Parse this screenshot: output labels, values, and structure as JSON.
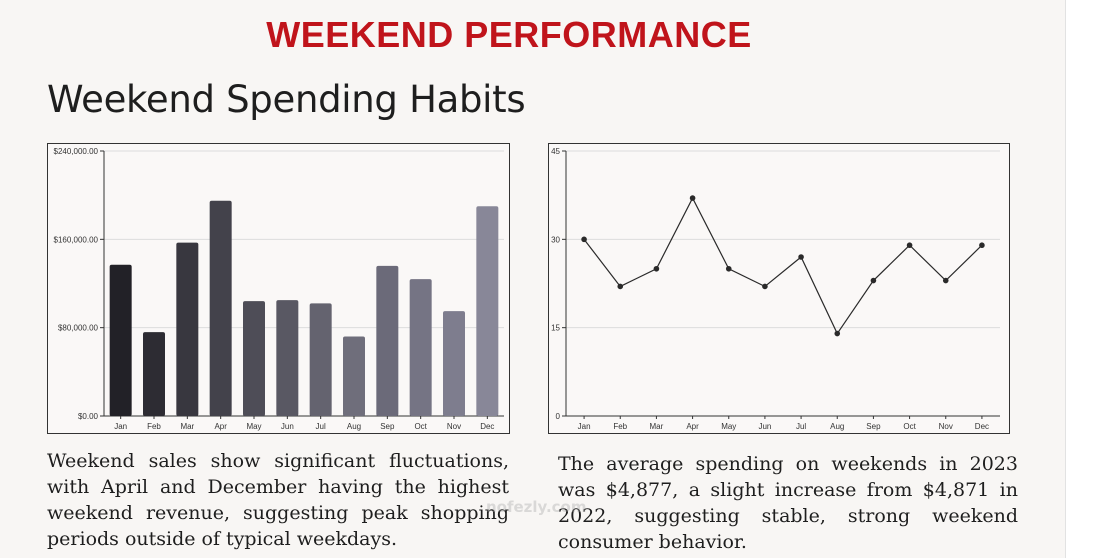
{
  "banner": "WEEKEND PERFORMANCE",
  "heading": "Weekend Spending Habits",
  "captions": {
    "left": "Weekend sales show significant fluctuations, with April and December having the highest weekend revenue, suggesting peak shopping periods outside of typical weekdays.",
    "right": "The average spending on weekends in 2023 was $4,877, a slight increase from $4,871 in 2022, suggesting stable, strong weekend consumer behavior."
  },
  "watermark": "nofezly.com",
  "chart_data": [
    {
      "type": "bar",
      "title": "",
      "xlabel": "",
      "ylabel": "",
      "categories": [
        "Jan",
        "Feb",
        "Mar",
        "Apr",
        "May",
        "Jun",
        "Jul",
        "Aug",
        "Sep",
        "Oct",
        "Nov",
        "Dec"
      ],
      "values": [
        137000,
        76000,
        157000,
        195000,
        104000,
        105000,
        102000,
        72000,
        136000,
        124000,
        95000,
        190000
      ],
      "ylim": [
        0,
        240000
      ],
      "y_ticks": [
        0,
        80000,
        160000,
        240000
      ],
      "y_tick_labels": [
        "$0.00",
        "$80,000.00",
        "$160,000.00",
        "$240,000.00"
      ],
      "grid": true,
      "bar_colors": [
        "#222127",
        "#2d2c33",
        "#38373f",
        "#43424b",
        "#4e4d57",
        "#595863",
        "#64636f",
        "#6f6e7b",
        "#6b6a79",
        "#757484",
        "#7e7d8e",
        "#888798"
      ]
    },
    {
      "type": "line",
      "title": "",
      "xlabel": "",
      "ylabel": "",
      "categories": [
        "Jan",
        "Feb",
        "Mar",
        "Apr",
        "May",
        "Jun",
        "Jul",
        "Aug",
        "Sep",
        "Oct",
        "Nov",
        "Dec"
      ],
      "values": [
        30,
        22,
        25,
        37,
        25,
        22,
        27,
        14,
        23,
        29,
        23,
        29
      ],
      "ylim": [
        0,
        45
      ],
      "y_ticks": [
        0,
        15,
        30,
        45
      ],
      "y_tick_labels": [
        "0",
        "15",
        "30",
        "45"
      ],
      "grid": true,
      "line_color": "#2a2a2a"
    }
  ]
}
